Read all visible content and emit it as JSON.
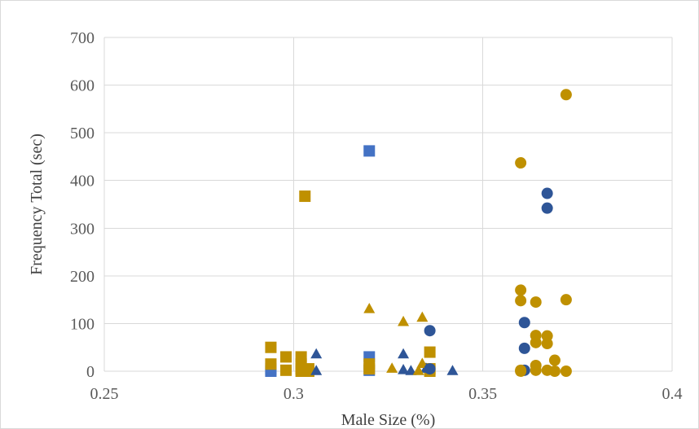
{
  "chart_data": {
    "type": "scatter",
    "xlabel": "Male Size (%)",
    "ylabel": "Frequency Total (sec)",
    "xlim": [
      0.25,
      0.4
    ],
    "ylim": [
      0,
      700
    ],
    "x_ticks": [
      0.25,
      0.3,
      0.35,
      0.4
    ],
    "x_tick_labels": [
      "0.25",
      "0.3",
      "0.35",
      "0.4"
    ],
    "y_ticks": [
      0,
      100,
      200,
      300,
      400,
      500,
      600,
      700
    ],
    "y_tick_labels": [
      "0",
      "100",
      "200",
      "300",
      "400",
      "500",
      "600",
      "700"
    ],
    "grid": true,
    "legend": "none",
    "series": [
      {
        "marker": "square",
        "color": "#4472c4",
        "points": [
          [
            0.294,
            5
          ],
          [
            0.294,
            0
          ],
          [
            0.32,
            462
          ],
          [
            0.32,
            30
          ],
          [
            0.32,
            2
          ]
        ]
      },
      {
        "marker": "square",
        "color": "#bf9000",
        "points": [
          [
            0.294,
            50
          ],
          [
            0.294,
            15
          ],
          [
            0.298,
            30
          ],
          [
            0.298,
            2
          ],
          [
            0.302,
            30
          ],
          [
            0.302,
            15
          ],
          [
            0.302,
            5
          ],
          [
            0.302,
            0
          ],
          [
            0.303,
            367
          ],
          [
            0.304,
            5
          ],
          [
            0.304,
            0
          ],
          [
            0.32,
            15
          ],
          [
            0.32,
            5
          ],
          [
            0.336,
            40
          ],
          [
            0.336,
            5
          ],
          [
            0.336,
            0
          ]
        ]
      },
      {
        "marker": "triangle",
        "color": "#2e5597",
        "points": [
          [
            0.306,
            35
          ],
          [
            0.306,
            0
          ],
          [
            0.329,
            35
          ],
          [
            0.329,
            2
          ],
          [
            0.331,
            0
          ],
          [
            0.335,
            5
          ],
          [
            0.342,
            0
          ]
        ]
      },
      {
        "marker": "triangle",
        "color": "#bf9000",
        "points": [
          [
            0.32,
            130
          ],
          [
            0.326,
            5
          ],
          [
            0.329,
            103
          ],
          [
            0.333,
            0
          ],
          [
            0.334,
            112
          ],
          [
            0.334,
            15
          ]
        ]
      },
      {
        "marker": "circle",
        "color": "#2e5597",
        "points": [
          [
            0.336,
            85
          ],
          [
            0.336,
            5
          ],
          [
            0.361,
            102
          ],
          [
            0.361,
            48
          ],
          [
            0.361,
            2
          ],
          [
            0.367,
            373
          ],
          [
            0.367,
            342
          ]
        ]
      },
      {
        "marker": "circle",
        "color": "#bf9000",
        "points": [
          [
            0.36,
            437
          ],
          [
            0.36,
            170
          ],
          [
            0.36,
            148
          ],
          [
            0.36,
            2
          ],
          [
            0.36,
            0
          ],
          [
            0.364,
            145
          ],
          [
            0.364,
            75
          ],
          [
            0.364,
            60
          ],
          [
            0.364,
            12
          ],
          [
            0.364,
            2
          ],
          [
            0.367,
            74
          ],
          [
            0.367,
            58
          ],
          [
            0.367,
            2
          ],
          [
            0.369,
            23
          ],
          [
            0.369,
            0
          ],
          [
            0.372,
            580
          ],
          [
            0.372,
            150
          ],
          [
            0.372,
            0
          ]
        ]
      }
    ]
  }
}
